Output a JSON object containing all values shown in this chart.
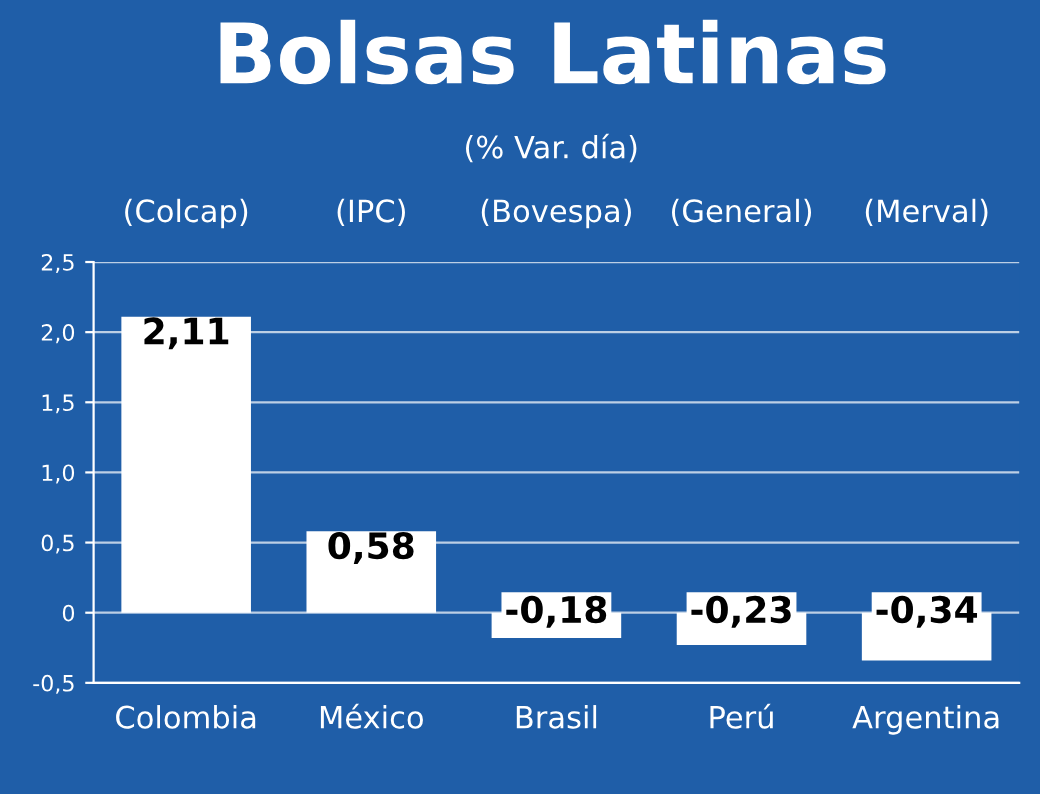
{
  "chart_data": {
    "type": "bar",
    "title": "Bolsas Latinas",
    "subtitle": "(% Var. día)",
    "categories": [
      "Colombia",
      "México",
      "Brasil",
      "Perú",
      "Argentina"
    ],
    "values": [
      2.11,
      0.58,
      -0.18,
      -0.23,
      -0.34
    ],
    "value_labels": [
      "2,11",
      "0,58",
      "-0,18",
      "-0,23",
      "-0,34"
    ],
    "color": "#ffffff",
    "annotations": [
      "(Colcap)",
      "(IPC)",
      "(Bovespa)",
      "(General)",
      "(Merval)"
    ],
    "ylim": [
      -0.5,
      2.5
    ],
    "yticks": [
      {
        "value": -0.5,
        "label": "-0,5"
      },
      0,
      {
        "value": 0.5,
        "label": "0,5"
      },
      {
        "value": 1,
        "label": "1,0"
      },
      {
        "value": 1.5,
        "label": "1,5"
      },
      {
        "value": 2,
        "label": "2,0"
      },
      {
        "value": 2.5,
        "label": "2,5"
      }
    ],
    "grid": "y"
  }
}
